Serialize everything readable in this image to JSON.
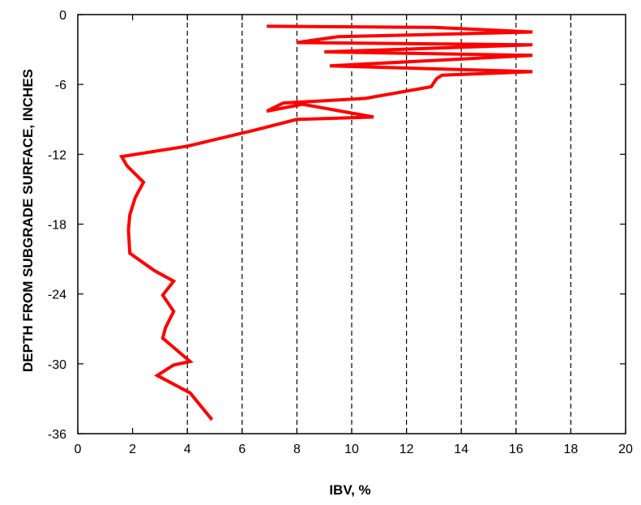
{
  "chart_data": {
    "type": "line",
    "title": "",
    "xlabel": "IBV, %",
    "ylabel": "DEPTH FROM SUBGRADE SURFACE, INCHES",
    "xlim": [
      0,
      20
    ],
    "ylim": [
      -36,
      0
    ],
    "xticks": [
      "0",
      "2",
      "4",
      "6",
      "8",
      "10",
      "12",
      "14",
      "16",
      "18",
      "20"
    ],
    "yticks": [
      "0",
      "-6",
      "-12",
      "-18",
      "-24",
      "-30",
      "-36"
    ],
    "grid": "vertical dashed lines at x = 4 to 18",
    "grid_x": [
      4,
      6,
      8,
      10,
      12,
      14,
      16,
      18
    ],
    "line_color": "#ff0000",
    "series": [
      {
        "x": [
          6.9,
          13.0,
          16.6,
          9.5,
          8.0,
          16.6,
          9.0,
          16.6,
          9.2,
          16.6,
          13.3,
          13.1,
          12.9,
          10.5,
          7.5,
          6.9,
          8.2,
          10.8,
          8.0,
          6.5,
          4.0,
          1.6,
          1.8,
          2.4,
          2.1,
          1.9,
          1.85,
          1.9,
          2.8,
          3.5,
          3.1,
          3.5,
          3.2,
          3.1,
          4.1,
          3.5,
          2.9,
          4.1,
          4.9
        ],
        "y": [
          -1.0,
          -1.1,
          -1.5,
          -1.9,
          -2.4,
          -2.6,
          -3.2,
          -3.5,
          -4.4,
          -4.9,
          -5.2,
          -5.5,
          -6.2,
          -7.2,
          -7.6,
          -8.3,
          -7.7,
          -8.8,
          -9.0,
          -9.9,
          -11.3,
          -12.2,
          -13.0,
          -14.4,
          -15.7,
          -17.2,
          -18.5,
          -20.5,
          -22.0,
          -22.9,
          -24.1,
          -25.5,
          -26.9,
          -27.8,
          -29.8,
          -30.1,
          -31.0,
          -32.5,
          -34.8
        ]
      }
    ]
  }
}
